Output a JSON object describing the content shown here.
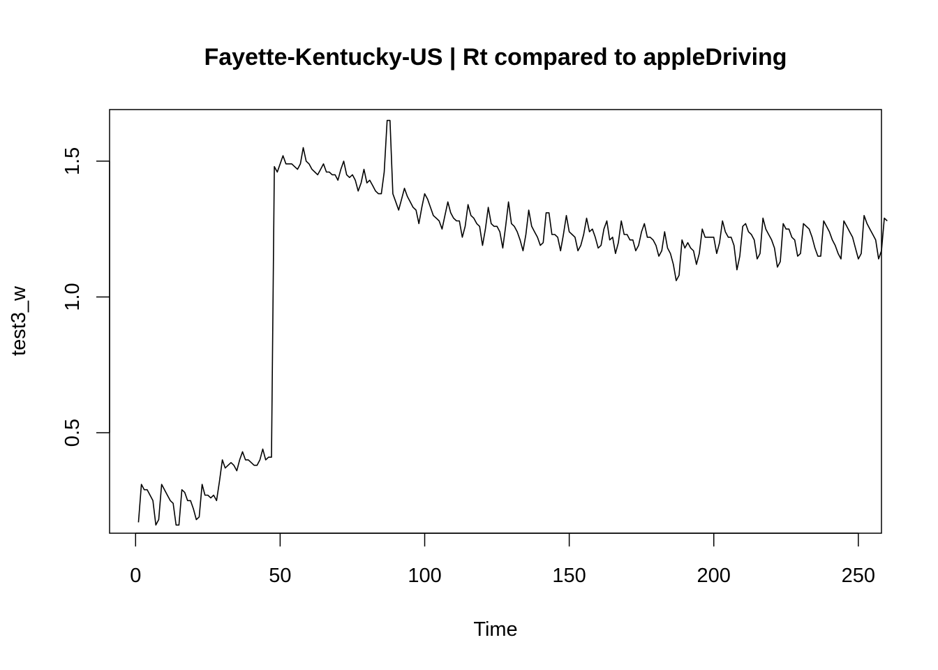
{
  "chart_data": {
    "type": "line",
    "title": "Fayette-Kentucky-US | Rt compared to appleDriving",
    "xlabel": "Time",
    "ylabel": "test3_w",
    "xlim": [
      -9,
      258
    ],
    "ylim": [
      0.13,
      1.69
    ],
    "x_ticks": [
      0,
      50,
      100,
      150,
      200,
      250
    ],
    "y_ticks": [
      0.5,
      1.0,
      1.5
    ],
    "x_tick_labels": [
      "0",
      "50",
      "100",
      "150",
      "200",
      "250"
    ],
    "y_tick_labels": [
      "0.5",
      "1.0",
      "1.5"
    ],
    "grid": false,
    "line_color": "#000000",
    "x_start": 1,
    "series": [
      {
        "values": [
          0.17,
          0.31,
          0.29,
          0.29,
          0.27,
          0.25,
          0.16,
          0.18,
          0.31,
          0.29,
          0.27,
          0.25,
          0.24,
          0.16,
          0.16,
          0.29,
          0.28,
          0.25,
          0.25,
          0.22,
          0.18,
          0.19,
          0.31,
          0.27,
          0.27,
          0.26,
          0.27,
          0.25,
          0.32,
          0.4,
          0.37,
          0.38,
          0.39,
          0.38,
          0.36,
          0.4,
          0.43,
          0.4,
          0.4,
          0.39,
          0.38,
          0.38,
          0.4,
          0.44,
          0.4,
          0.41,
          0.41,
          1.48,
          1.46,
          1.49,
          1.52,
          1.49,
          1.49,
          1.49,
          1.48,
          1.47,
          1.49,
          1.55,
          1.5,
          1.49,
          1.47,
          1.46,
          1.45,
          1.47,
          1.49,
          1.46,
          1.46,
          1.45,
          1.45,
          1.43,
          1.47,
          1.5,
          1.45,
          1.44,
          1.45,
          1.43,
          1.39,
          1.42,
          1.47,
          1.42,
          1.43,
          1.41,
          1.39,
          1.38,
          1.38,
          1.46,
          1.65,
          1.65,
          1.38,
          1.35,
          1.32,
          1.36,
          1.4,
          1.37,
          1.35,
          1.33,
          1.32,
          1.27,
          1.33,
          1.38,
          1.36,
          1.33,
          1.3,
          1.29,
          1.28,
          1.25,
          1.3,
          1.35,
          1.31,
          1.29,
          1.28,
          1.28,
          1.22,
          1.26,
          1.34,
          1.3,
          1.29,
          1.27,
          1.26,
          1.19,
          1.25,
          1.33,
          1.27,
          1.26,
          1.26,
          1.24,
          1.18,
          1.26,
          1.35,
          1.27,
          1.26,
          1.24,
          1.21,
          1.17,
          1.23,
          1.32,
          1.26,
          1.24,
          1.22,
          1.19,
          1.2,
          1.31,
          1.31,
          1.23,
          1.23,
          1.22,
          1.17,
          1.23,
          1.3,
          1.24,
          1.23,
          1.22,
          1.17,
          1.19,
          1.23,
          1.29,
          1.24,
          1.25,
          1.22,
          1.18,
          1.19,
          1.25,
          1.28,
          1.21,
          1.22,
          1.16,
          1.2,
          1.28,
          1.23,
          1.23,
          1.21,
          1.21,
          1.17,
          1.19,
          1.24,
          1.27,
          1.22,
          1.22,
          1.21,
          1.19,
          1.15,
          1.17,
          1.24,
          1.18,
          1.16,
          1.12,
          1.06,
          1.08,
          1.21,
          1.18,
          1.2,
          1.18,
          1.17,
          1.12,
          1.16,
          1.25,
          1.22,
          1.22,
          1.22,
          1.22,
          1.16,
          1.2,
          1.28,
          1.24,
          1.22,
          1.22,
          1.19,
          1.1,
          1.15,
          1.26,
          1.27,
          1.24,
          1.23,
          1.21,
          1.14,
          1.16,
          1.29,
          1.25,
          1.23,
          1.21,
          1.18,
          1.11,
          1.13,
          1.27,
          1.25,
          1.25,
          1.22,
          1.21,
          1.15,
          1.16,
          1.27,
          1.26,
          1.25,
          1.22,
          1.18,
          1.15,
          1.15,
          1.28,
          1.26,
          1.24,
          1.21,
          1.19,
          1.16,
          1.14,
          1.28,
          1.26,
          1.24,
          1.22,
          1.18,
          1.14,
          1.16,
          1.3,
          1.27,
          1.25,
          1.23,
          1.21,
          1.14,
          1.17,
          1.29,
          1.28
        ]
      }
    ]
  }
}
